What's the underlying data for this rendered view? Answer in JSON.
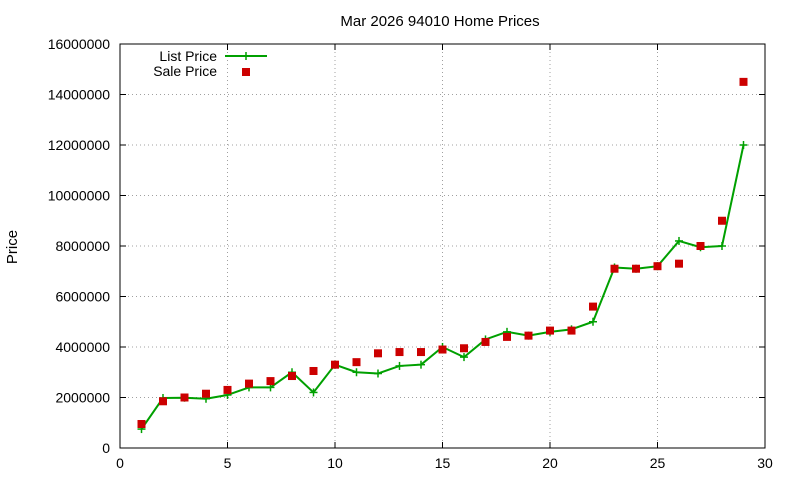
{
  "chart_data": {
    "type": "line",
    "title": "Mar 2026 94010 Home Prices",
    "xlabel": "",
    "ylabel": "Price",
    "xlim": [
      0,
      30
    ],
    "ylim": [
      0,
      16000000
    ],
    "xticks": [
      0,
      5,
      10,
      15,
      20,
      25,
      30
    ],
    "xtick_labels": [
      "0",
      "5",
      "10",
      "15",
      "20",
      "25",
      "30"
    ],
    "yticks": [
      0,
      2000000,
      4000000,
      6000000,
      8000000,
      10000000,
      12000000,
      14000000,
      16000000
    ],
    "ytick_labels": [
      "0",
      "2000000",
      "4000000",
      "6000000",
      "8000000",
      "10000000",
      "12000000",
      "14000000",
      "16000000"
    ],
    "grid": true,
    "legend_position": "top-left",
    "series": [
      {
        "name": "List Price",
        "style": "line-with-plus-markers",
        "color": "#00a000",
        "x": [
          1,
          2,
          3,
          4,
          5,
          6,
          7,
          8,
          9,
          10,
          11,
          12,
          13,
          14,
          15,
          16,
          17,
          18,
          19,
          20,
          21,
          22,
          23,
          24,
          25,
          26,
          27,
          28,
          29
        ],
        "values": [
          750000,
          1980000,
          1990000,
          1950000,
          2100000,
          2400000,
          2400000,
          3000000,
          2200000,
          3300000,
          3000000,
          2950000,
          3250000,
          3300000,
          4000000,
          3600000,
          4300000,
          4600000,
          4450000,
          4600000,
          4700000,
          5000000,
          7150000,
          7100000,
          7200000,
          8200000,
          7950000,
          8000000,
          12000000
        ]
      },
      {
        "name": "Sale Price",
        "style": "square-markers",
        "color": "#cc0000",
        "x": [
          1,
          2,
          3,
          4,
          5,
          6,
          7,
          8,
          9,
          10,
          11,
          12,
          13,
          14,
          15,
          16,
          17,
          18,
          19,
          20,
          21,
          22,
          23,
          24,
          25,
          26,
          27,
          28,
          29
        ],
        "values": [
          950000,
          1850000,
          2000000,
          2150000,
          2300000,
          2550000,
          2650000,
          2850000,
          3050000,
          3300000,
          3400000,
          3750000,
          3800000,
          3800000,
          3900000,
          3950000,
          4200000,
          4400000,
          4450000,
          4650000,
          4650000,
          5600000,
          7100000,
          7100000,
          7200000,
          7300000,
          8000000,
          9000000,
          14500000
        ]
      }
    ]
  }
}
